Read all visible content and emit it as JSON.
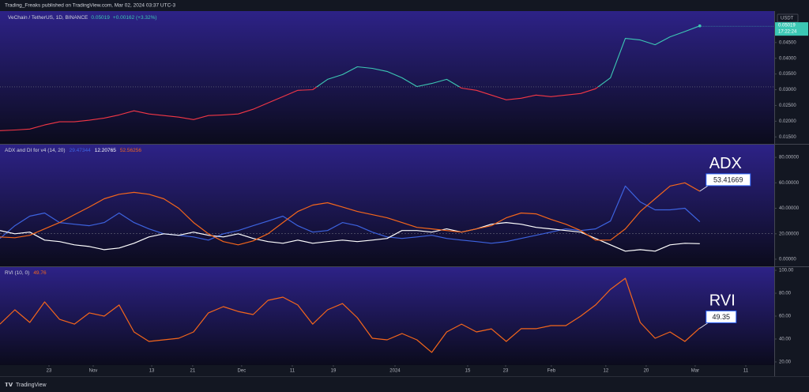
{
  "header": {
    "text": "Trading_Freaks published on TradingView.com, Mar 02, 2024 03:37 UTC-3"
  },
  "footer": {
    "brand": "TradingView"
  },
  "chart_data": [
    {
      "type": "line",
      "title": "VeChain / TetherUS, 1D, BINANCE",
      "last": 0.05019,
      "change": "+0.00162 (+3.32%)",
      "currency": "USDT",
      "countdown": "17:22:24",
      "baseline": 0.0309,
      "color_above": "#3cc8b4",
      "color_below": "#f23645",
      "xlim": [
        0,
        52
      ],
      "ylim": [
        0.0128,
        0.055
      ],
      "yticks": [
        {
          "value": 0.045,
          "label": "0.04500"
        },
        {
          "value": 0.04,
          "label": "0.04000"
        },
        {
          "value": 0.035,
          "label": "0.03500"
        },
        {
          "value": 0.03,
          "label": "0.03000"
        },
        {
          "value": 0.025,
          "label": "0.02500"
        },
        {
          "value": 0.02,
          "label": "0.02000"
        },
        {
          "value": 0.015,
          "label": "0.01500"
        }
      ],
      "values": [
        0.017,
        0.0172,
        0.0175,
        0.0188,
        0.0198,
        0.0198,
        0.0203,
        0.021,
        0.022,
        0.0233,
        0.0223,
        0.0218,
        0.0213,
        0.0205,
        0.0218,
        0.022,
        0.0223,
        0.0238,
        0.0258,
        0.0278,
        0.0298,
        0.03,
        0.0333,
        0.0348,
        0.0373,
        0.0368,
        0.0358,
        0.0338,
        0.031,
        0.032,
        0.0333,
        0.0305,
        0.0298,
        0.0283,
        0.0268,
        0.0273,
        0.0283,
        0.0278,
        0.0283,
        0.0288,
        0.0303,
        0.0338,
        0.0463,
        0.0458,
        0.0443,
        0.0468,
        0.0485,
        0.0503
      ]
    },
    {
      "type": "line",
      "title": "ADX and DI for v4 (14, 20)",
      "legend_values": [
        29.47344,
        12.20765,
        52.56256
      ],
      "annotation": {
        "text": "ADX",
        "value": 53.41669
      },
      "hline": 20,
      "xlim": [
        0,
        52
      ],
      "ylim": [
        -5.6,
        90
      ],
      "yticks": [
        {
          "value": 80,
          "label": "80.00000"
        },
        {
          "value": 60,
          "label": "60.00000"
        },
        {
          "value": 40,
          "label": "40.00000"
        },
        {
          "value": 20,
          "label": "20.00000"
        },
        {
          "value": 0,
          "label": "0.00000"
        }
      ],
      "series": [
        {
          "color": "#3d63e0",
          "values": [
            16.3,
            26.3,
            33.8,
            36.3,
            28.8,
            27.5,
            26.3,
            28.8,
            36.3,
            28.8,
            23.8,
            20,
            18.8,
            17.5,
            15,
            20,
            22.5,
            26.3,
            30,
            33.8,
            26.3,
            21.3,
            22.5,
            28.8,
            26.3,
            21.3,
            17.5,
            16.3,
            17.5,
            18.8,
            16.3,
            15,
            13.8,
            12.5,
            13.8,
            16.3,
            18.8,
            21.3,
            23.8,
            22.5,
            23.8,
            30,
            57.5,
            45,
            38.8,
            38.8,
            40,
            29.4
          ]
        },
        {
          "color": "#ffffff",
          "values": [
            22.5,
            20,
            21.3,
            15,
            13.8,
            11.3,
            10,
            7.5,
            8.8,
            12.5,
            17.5,
            20,
            18.8,
            21.3,
            18.8,
            17.5,
            20,
            16.3,
            13.8,
            12.5,
            15,
            12.5,
            13.8,
            15,
            13.8,
            15,
            16.3,
            22.5,
            22.5,
            21.3,
            23.8,
            21.3,
            23.8,
            27.5,
            28.8,
            27.5,
            25,
            23.8,
            22.5,
            21.3,
            16.3,
            11.3,
            6.3,
            7.5,
            6.3,
            11.3,
            12.5,
            12.2
          ]
        },
        {
          "color": "#f4661b",
          "values": [
            17.5,
            16.9,
            18.8,
            23.8,
            28.8,
            35,
            41,
            47.5,
            51,
            52.5,
            51,
            47.5,
            40,
            28.8,
            20,
            13.8,
            11.3,
            14.4,
            20,
            28.8,
            37.5,
            42.5,
            44.4,
            41,
            37.5,
            35,
            32.5,
            28.8,
            25,
            23.8,
            22.5,
            21.3,
            23.8,
            26.3,
            32.5,
            36.3,
            35.6,
            31.3,
            27.5,
            22.5,
            15,
            15,
            23.8,
            37.5,
            47.5,
            57.5,
            60,
            53.4
          ]
        }
      ]
    },
    {
      "type": "line",
      "title": "RVI (10, 0)",
      "legend_values": [
        49.76
      ],
      "annotation": {
        "text": "RVI",
        "value": 49.35
      },
      "xlim": [
        0,
        52
      ],
      "ylim": [
        17.2,
        102.8
      ],
      "yticks": [
        {
          "value": 100,
          "label": "100.00"
        },
        {
          "value": 80,
          "label": "80.00"
        },
        {
          "value": 60,
          "label": "60.00"
        },
        {
          "value": 40,
          "label": "40.00"
        },
        {
          "value": 20,
          "label": "20.00"
        }
      ],
      "xticks": [
        {
          "value": 3.29,
          "label": "23"
        },
        {
          "value": 6.26,
          "label": "Nov"
        },
        {
          "value": 10.19,
          "label": "13"
        },
        {
          "value": 12.94,
          "label": "21"
        },
        {
          "value": 16.23,
          "label": "Dec"
        },
        {
          "value": 19.63,
          "label": "11"
        },
        {
          "value": 22.39,
          "label": "19"
        },
        {
          "value": 26.53,
          "label": "2024"
        },
        {
          "value": 31.41,
          "label": "15"
        },
        {
          "value": 33.96,
          "label": "23"
        },
        {
          "value": 37.03,
          "label": "Feb"
        },
        {
          "value": 40.69,
          "label": "12"
        },
        {
          "value": 43.4,
          "label": "20"
        },
        {
          "value": 46.69,
          "label": "Mar"
        },
        {
          "value": 50.09,
          "label": "11"
        }
      ],
      "series": [
        {
          "color": "#f4661b",
          "values": [
            53,
            65.5,
            54.5,
            72.4,
            57.2,
            53,
            62.8,
            60,
            69.7,
            46.2,
            37.9,
            39.3,
            40.7,
            46.2,
            62.8,
            68.3,
            64.1,
            61.4,
            73.8,
            76.6,
            69.7,
            53,
            65.5,
            71,
            58.6,
            40.7,
            39.3,
            44.8,
            39.3,
            28.3,
            46.2,
            53,
            46.2,
            48.9,
            37.9,
            49,
            49,
            51.7,
            51.7,
            60,
            69.7,
            83.4,
            93.1,
            54.5,
            40.7,
            46.2,
            37.9,
            49.7
          ]
        }
      ]
    }
  ]
}
